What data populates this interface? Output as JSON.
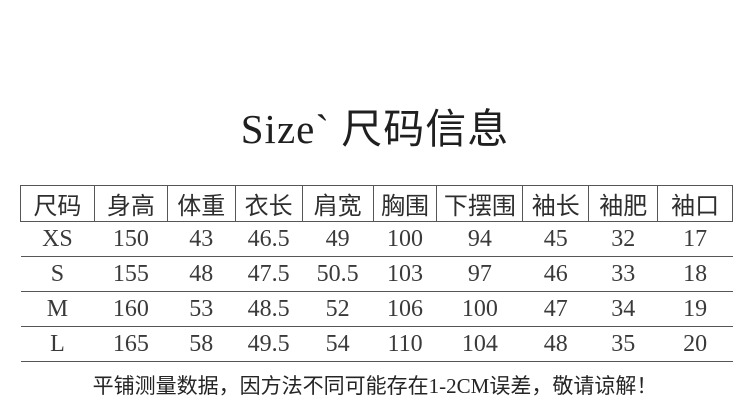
{
  "page": {
    "background_color": "#ffffff",
    "text_color": "#3a3a3a",
    "border_color": "#565656"
  },
  "title": {
    "text": "Size` 尺码信息"
  },
  "size_table": {
    "headers": [
      "尺码",
      "身高",
      "体重",
      "衣长",
      "肩宽",
      "胸围",
      "下摆围",
      "袖长",
      "袖肥",
      "袖口"
    ],
    "rows": [
      [
        "XS",
        "150",
        "43",
        "46.5",
        "49",
        "100",
        "94",
        "45",
        "32",
        "17"
      ],
      [
        "S",
        "155",
        "48",
        "47.5",
        "50.5",
        "103",
        "97",
        "46",
        "33",
        "18"
      ],
      [
        "M",
        "160",
        "53",
        "48.5",
        "52",
        "106",
        "100",
        "47",
        "34",
        "19"
      ],
      [
        "L",
        "165",
        "58",
        "49.5",
        "54",
        "110",
        "104",
        "48",
        "35",
        "20"
      ]
    ]
  },
  "footnote": {
    "text": "平铺测量数据，因方法不同可能存在1-2CM误差，敬请谅解！"
  }
}
